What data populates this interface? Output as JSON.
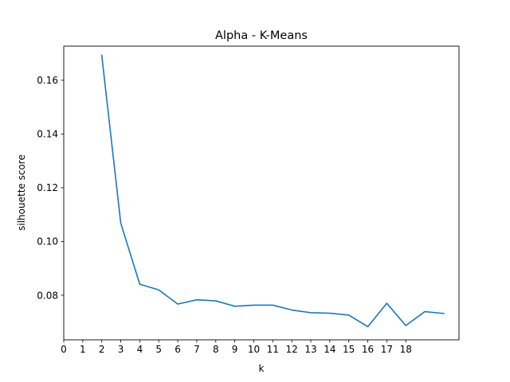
{
  "chart_data": {
    "type": "line",
    "title": "Alpha - K-Means",
    "xlabel": "k",
    "ylabel": "silhouette score",
    "x_ticks": [
      0,
      1,
      2,
      3,
      4,
      5,
      6,
      7,
      8,
      9,
      10,
      11,
      12,
      13,
      14,
      15,
      16,
      17,
      18
    ],
    "y_ticks": [
      "0.08",
      "0.10",
      "0.12",
      "0.14",
      "0.16"
    ],
    "xlim": [
      0,
      20.8
    ],
    "ylim": [
      0.0634,
      0.1727
    ],
    "grid": false,
    "line_color": "#1f77b4",
    "series": [
      {
        "x": [
          2,
          3,
          4,
          5,
          6,
          7,
          8,
          9,
          10,
          11,
          12,
          13,
          14,
          15,
          16,
          17,
          18,
          19,
          20
        ],
        "values": [
          0.1693,
          0.1068,
          0.0841,
          0.082,
          0.0767,
          0.0783,
          0.0779,
          0.0759,
          0.0763,
          0.0763,
          0.0745,
          0.0735,
          0.0733,
          0.0726,
          0.0683,
          0.077,
          0.0687,
          0.0739,
          0.0732
        ]
      }
    ]
  }
}
